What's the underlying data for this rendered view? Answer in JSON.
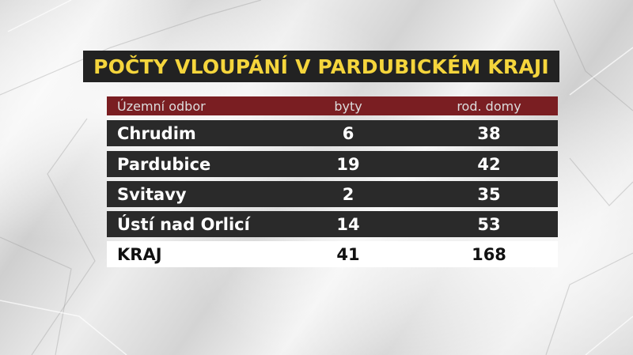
{
  "title": "POČTY VLOUPÁNÍ V PARDUBICKÉM KRAJI",
  "chart_data": {
    "type": "table",
    "title": "POČTY VLOUPÁNÍ V PARDUBICKÉM KRAJI",
    "columns": [
      "Územní odbor",
      "byty",
      "rod. domy"
    ],
    "rows": [
      {
        "name": "Chrudim",
        "byty": "6",
        "rod_domy": "38"
      },
      {
        "name": "Pardubice",
        "byty": "19",
        "rod_domy": "42"
      },
      {
        "name": "Svitavy",
        "byty": "2",
        "rod_domy": "35"
      },
      {
        "name": "Ústí nad Orlicí",
        "byty": "14",
        "rod_domy": "53"
      }
    ],
    "total": {
      "name": "KRAJ",
      "byty": "41",
      "rod_domy": "168"
    }
  },
  "colors": {
    "title_bg": "#222222",
    "title_text": "#f5d53c",
    "header_bg": "#7a1e22",
    "row_bg": "#2a2a2a",
    "total_bg": "#ffffff"
  }
}
